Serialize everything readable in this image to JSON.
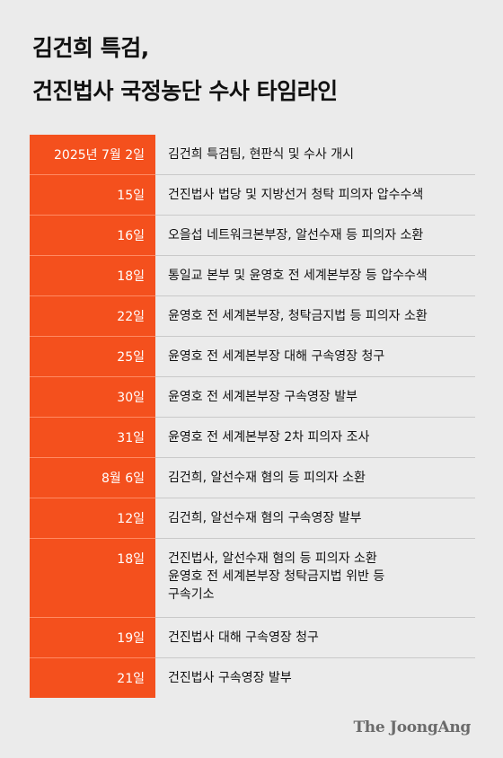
{
  "title": {
    "line1": "김건희 특검,",
    "line2": "건진법사 국정농단 수사 타임라인"
  },
  "rows": [
    {
      "date": "2025년 7월 2일",
      "lines": [
        "김건희 특검팀, 현판식 및 수사 개시"
      ]
    },
    {
      "date": "15일",
      "lines": [
        "건진법사 법당 및 지방선거 청탁 피의자 압수수색"
      ]
    },
    {
      "date": "16일",
      "lines": [
        "오을섭 네트워크본부장, 알선수재 등 피의자 소환"
      ]
    },
    {
      "date": "18일",
      "lines": [
        "통일교 본부 및 윤영호 전 세계본부장 등 압수수색"
      ]
    },
    {
      "date": "22일",
      "lines": [
        "윤영호 전 세계본부장, 청탁금지법 등 피의자 소환"
      ]
    },
    {
      "date": "25일",
      "lines": [
        "윤영호 전 세계본부장 대해 구속영장 청구"
      ]
    },
    {
      "date": "30일",
      "lines": [
        "윤영호 전 세계본부장 구속영장 발부"
      ]
    },
    {
      "date": "31일",
      "lines": [
        "윤영호 전 세계본부장 2차 피의자 조사"
      ]
    },
    {
      "date": "8월 6일",
      "lines": [
        "김건희, 알선수재 혐의 등 피의자 소환"
      ]
    },
    {
      "date": "12일",
      "lines": [
        "김건희, 알선수재 혐의 구속영장 발부"
      ]
    },
    {
      "date": "18일",
      "lines": [
        "건진법사, 알선수재 혐의 등 피의자 소환",
        "윤영호 전 세계본부장 청탁금지법 위반 등",
        "구속기소"
      ]
    },
    {
      "date": "19일",
      "lines": [
        "건진법사 대해 구속영장 청구"
      ]
    },
    {
      "date": "21일",
      "lines": [
        "건진법사 구속영장 발부"
      ]
    }
  ],
  "logo": "The JoongAng",
  "colors": {
    "accent": "#f4501d",
    "background": "#ebebeb",
    "text": "#111111"
  }
}
